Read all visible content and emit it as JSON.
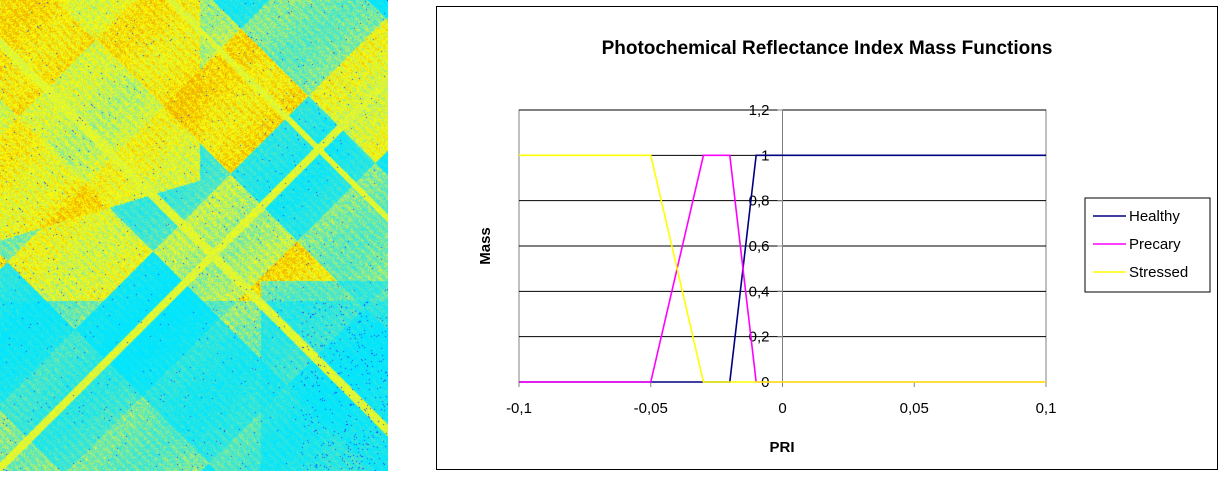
{
  "photo": {
    "colormap": [
      "#00e5ff",
      "#4fe6c8",
      "#c8f05a",
      "#ffff00",
      "#f0b000",
      "#1a3cff"
    ]
  },
  "chart_data": {
    "type": "line",
    "title": "Photochemical Reflectance Index Mass Functions",
    "xlabel": "PRI",
    "ylabel": "Mass",
    "xlim": [
      -0.1,
      0.1
    ],
    "ylim": [
      0,
      1.2
    ],
    "x_ticks": [
      -0.1,
      -0.05,
      0,
      0.05,
      0.1
    ],
    "x_tick_labels": [
      "-0,1",
      "-0,05",
      "0",
      "0,05",
      "0,1"
    ],
    "y_ticks": [
      0,
      0.2,
      0.4,
      0.6,
      0.8,
      1,
      1.2
    ],
    "y_tick_labels": [
      "0",
      "0,2",
      "0,4",
      "0,6",
      "0,8",
      "1",
      "1,2"
    ],
    "grid": "horizontal",
    "legend_position": "right",
    "series": [
      {
        "name": "Healthy",
        "color": "#000080",
        "points": [
          [
            -0.1,
            0
          ],
          [
            -0.02,
            0
          ],
          [
            -0.01,
            1
          ],
          [
            0.1,
            1
          ]
        ]
      },
      {
        "name": "Precary",
        "color": "#ff00ff",
        "points": [
          [
            -0.1,
            0
          ],
          [
            -0.05,
            0
          ],
          [
            -0.03,
            1
          ],
          [
            -0.02,
            1
          ],
          [
            -0.01,
            0
          ],
          [
            0.1,
            0
          ]
        ]
      },
      {
        "name": "Stressed",
        "color": "#ffff00",
        "points": [
          [
            -0.1,
            1
          ],
          [
            -0.05,
            1
          ],
          [
            -0.03,
            0
          ],
          [
            0.1,
            0
          ]
        ]
      }
    ]
  }
}
